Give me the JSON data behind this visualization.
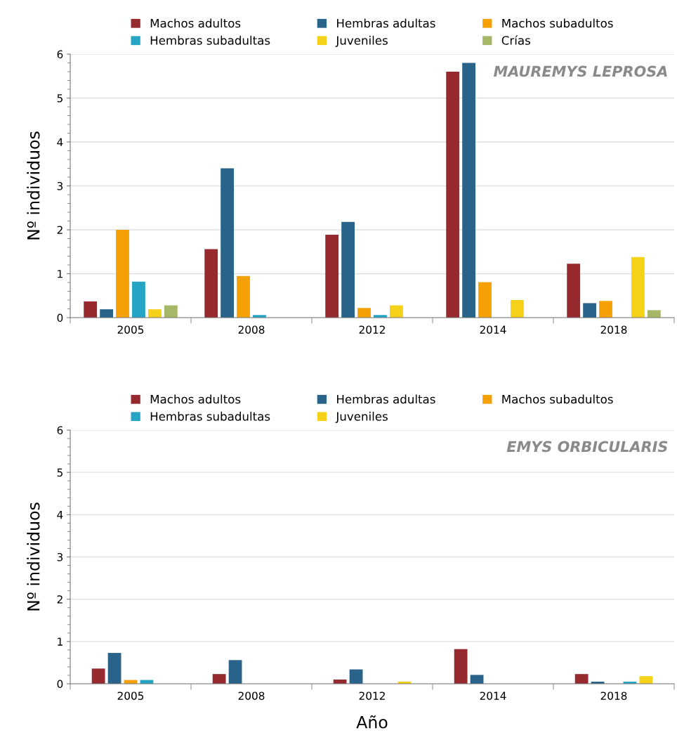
{
  "chart_data": [
    {
      "type": "bar",
      "title": "MAUREMYS LEPROSA",
      "ylabel": "Nº individuos",
      "categories": [
        "2005",
        "2008",
        "2012",
        "2014",
        "2018"
      ],
      "ylim": [
        0,
        6
      ],
      "yticks": [
        0,
        1,
        2,
        3,
        4,
        5,
        6
      ],
      "grid": "y",
      "legend": "top",
      "series": [
        {
          "name": "Machos adultos",
          "color": "#962a2e",
          "values": [
            0.37,
            1.56,
            1.89,
            5.6,
            1.23
          ]
        },
        {
          "name": "Hembras adultas",
          "color": "#2a6389",
          "values": [
            0.19,
            3.4,
            2.18,
            5.8,
            0.33
          ]
        },
        {
          "name": "Machos subadultos",
          "color": "#f5a106",
          "values": [
            2.0,
            0.95,
            0.22,
            0.81,
            0.38
          ]
        },
        {
          "name": "Hembras subadultas",
          "color": "#25a4c5",
          "values": [
            0.82,
            0.06,
            0.06,
            null,
            null
          ]
        },
        {
          "name": "Juveniles",
          "color": "#f5d11a",
          "values": [
            0.19,
            null,
            0.28,
            0.4,
            1.38
          ]
        },
        {
          "name": "Crías",
          "color": "#a5b867",
          "values": [
            0.28,
            null,
            null,
            null,
            0.17
          ]
        }
      ]
    },
    {
      "type": "bar",
      "title": "EMYS ORBICULARIS",
      "ylabel": "Nº individuos",
      "xlabel": "Año",
      "categories": [
        "2005",
        "2008",
        "2012",
        "2014",
        "2018"
      ],
      "ylim": [
        0,
        6
      ],
      "yticks": [
        0,
        1,
        2,
        3,
        4,
        5,
        6
      ],
      "grid": "y",
      "legend": "top",
      "series": [
        {
          "name": "Machos adultos",
          "color": "#962a2e",
          "values": [
            0.36,
            0.23,
            0.1,
            0.82,
            0.23
          ]
        },
        {
          "name": "Hembras adultas",
          "color": "#2a6389",
          "values": [
            0.73,
            0.56,
            0.34,
            0.21,
            0.05
          ]
        },
        {
          "name": "Machos subadultos",
          "color": "#f5a106",
          "values": [
            0.09,
            null,
            null,
            null,
            null
          ]
        },
        {
          "name": "Hembras subadultas",
          "color": "#25a4c5",
          "values": [
            0.09,
            null,
            null,
            null,
            0.05
          ]
        },
        {
          "name": "Juveniles",
          "color": "#f5d11a",
          "values": [
            null,
            null,
            0.05,
            null,
            0.18
          ]
        }
      ]
    }
  ]
}
